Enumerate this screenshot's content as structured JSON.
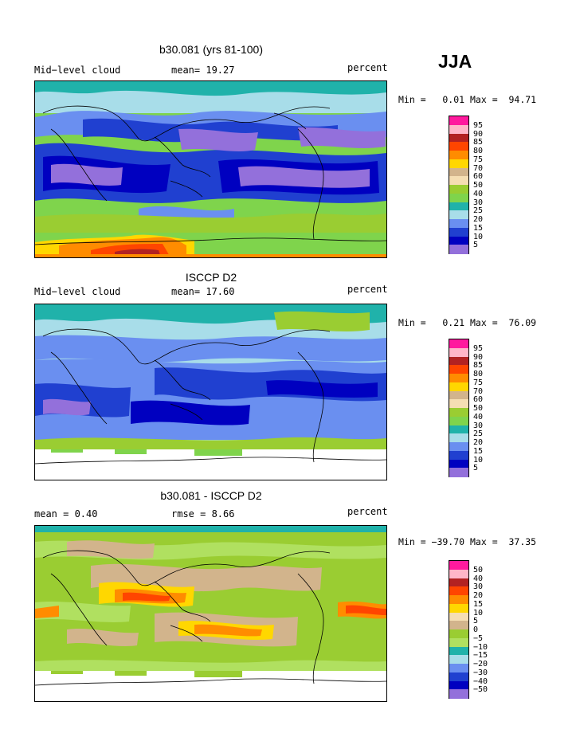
{
  "season": "JJA",
  "panels": [
    {
      "title": "b30.081 (yrs 81-100)",
      "left_label": "Mid−level cloud",
      "mid_label": "mean=  19.27",
      "units": "percent",
      "min_max": "Min =   0.01 Max =  94.71",
      "colorbar": {
        "colors": [
          "#ff1a9e",
          "#ffb6c8",
          "#b22222",
          "#ff4500",
          "#ff8c00",
          "#ffd700",
          "#d2b48c",
          "#f5deb3",
          "#9acd32",
          "#7fd44c",
          "#20b2aa",
          "#a8dde9",
          "#6a8ff0",
          "#2040d0",
          "#0000c0",
          "#9370db"
        ],
        "labels": [
          "95",
          "90",
          "85",
          "80",
          "75",
          "70",
          "60",
          "50",
          "40",
          "30",
          "25",
          "20",
          "15",
          "10",
          "5"
        ]
      }
    },
    {
      "title": "ISCCP D2",
      "left_label": "Mid−level cloud",
      "mid_label": "mean=  17.60",
      "units": "percent",
      "min_max": "Min =   0.21 Max =  76.09",
      "colorbar": {
        "colors": [
          "#ff1a9e",
          "#ffb6c8",
          "#b22222",
          "#ff4500",
          "#ff8c00",
          "#ffd700",
          "#d2b48c",
          "#f5deb3",
          "#9acd32",
          "#7fd44c",
          "#20b2aa",
          "#a8dde9",
          "#6a8ff0",
          "#2040d0",
          "#0000c0",
          "#9370db"
        ],
        "labels": [
          "95",
          "90",
          "85",
          "80",
          "75",
          "70",
          "60",
          "50",
          "40",
          "30",
          "25",
          "20",
          "15",
          "10",
          "5"
        ]
      }
    },
    {
      "title": "b30.081 - ISCCP D2",
      "left_label": "mean =   0.40",
      "mid_label": "rmse =   8.66",
      "units": "percent",
      "min_max": "Min = −39.70 Max =  37.35",
      "colorbar": {
        "colors": [
          "#ff1a9e",
          "#ffb6c8",
          "#b22222",
          "#ff4500",
          "#ff8c00",
          "#ffd700",
          "#f5deb3",
          "#d2b48c",
          "#9acd32",
          "#b0e060",
          "#20b2aa",
          "#a8dde9",
          "#6a8ff0",
          "#2040d0",
          "#0000c0",
          "#9370db"
        ],
        "labels": [
          "50",
          "40",
          "30",
          "20",
          "15",
          "10",
          "5",
          "0",
          "−5",
          "−10",
          "−15",
          "−20",
          "−30",
          "−40",
          "−50"
        ]
      }
    }
  ]
}
